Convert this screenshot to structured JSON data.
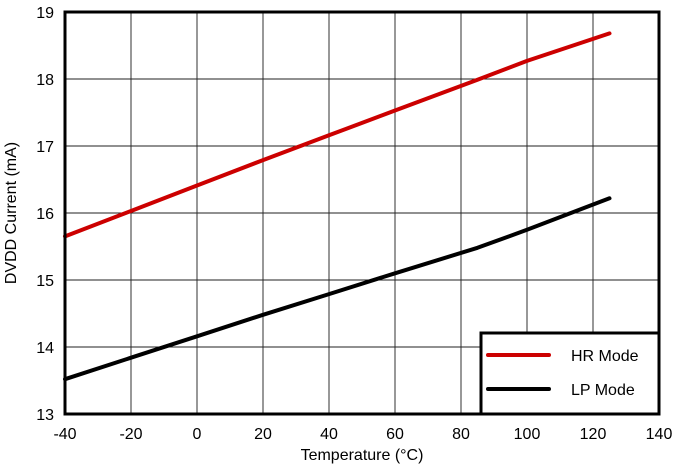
{
  "chart_data": {
    "type": "line",
    "title": "",
    "xlabel": "Temperature (°C)",
    "ylabel": "DVDD Current (mA)",
    "xlim": [
      -40,
      140
    ],
    "ylim": [
      13,
      19
    ],
    "xticks": [
      -40,
      -20,
      0,
      20,
      40,
      60,
      80,
      100,
      120,
      140
    ],
    "yticks": [
      13,
      14,
      15,
      16,
      17,
      18,
      19
    ],
    "grid": true,
    "legend_position": "lower right",
    "x": [
      -40,
      -20,
      0,
      20,
      40,
      60,
      85,
      100,
      125
    ],
    "series": [
      {
        "name": "HR Mode",
        "color": "#cc0000",
        "values": [
          15.65,
          16.03,
          16.41,
          16.79,
          17.16,
          17.53,
          17.99,
          18.27,
          18.68
        ]
      },
      {
        "name": "LP Mode",
        "color": "#000000",
        "values": [
          13.52,
          13.84,
          14.16,
          14.48,
          14.79,
          15.1,
          15.48,
          15.75,
          16.22
        ]
      }
    ]
  },
  "legend": {
    "items": [
      {
        "label": "HR Mode",
        "color": "#cc0000"
      },
      {
        "label": "LP Mode",
        "color": "#000000"
      }
    ]
  }
}
